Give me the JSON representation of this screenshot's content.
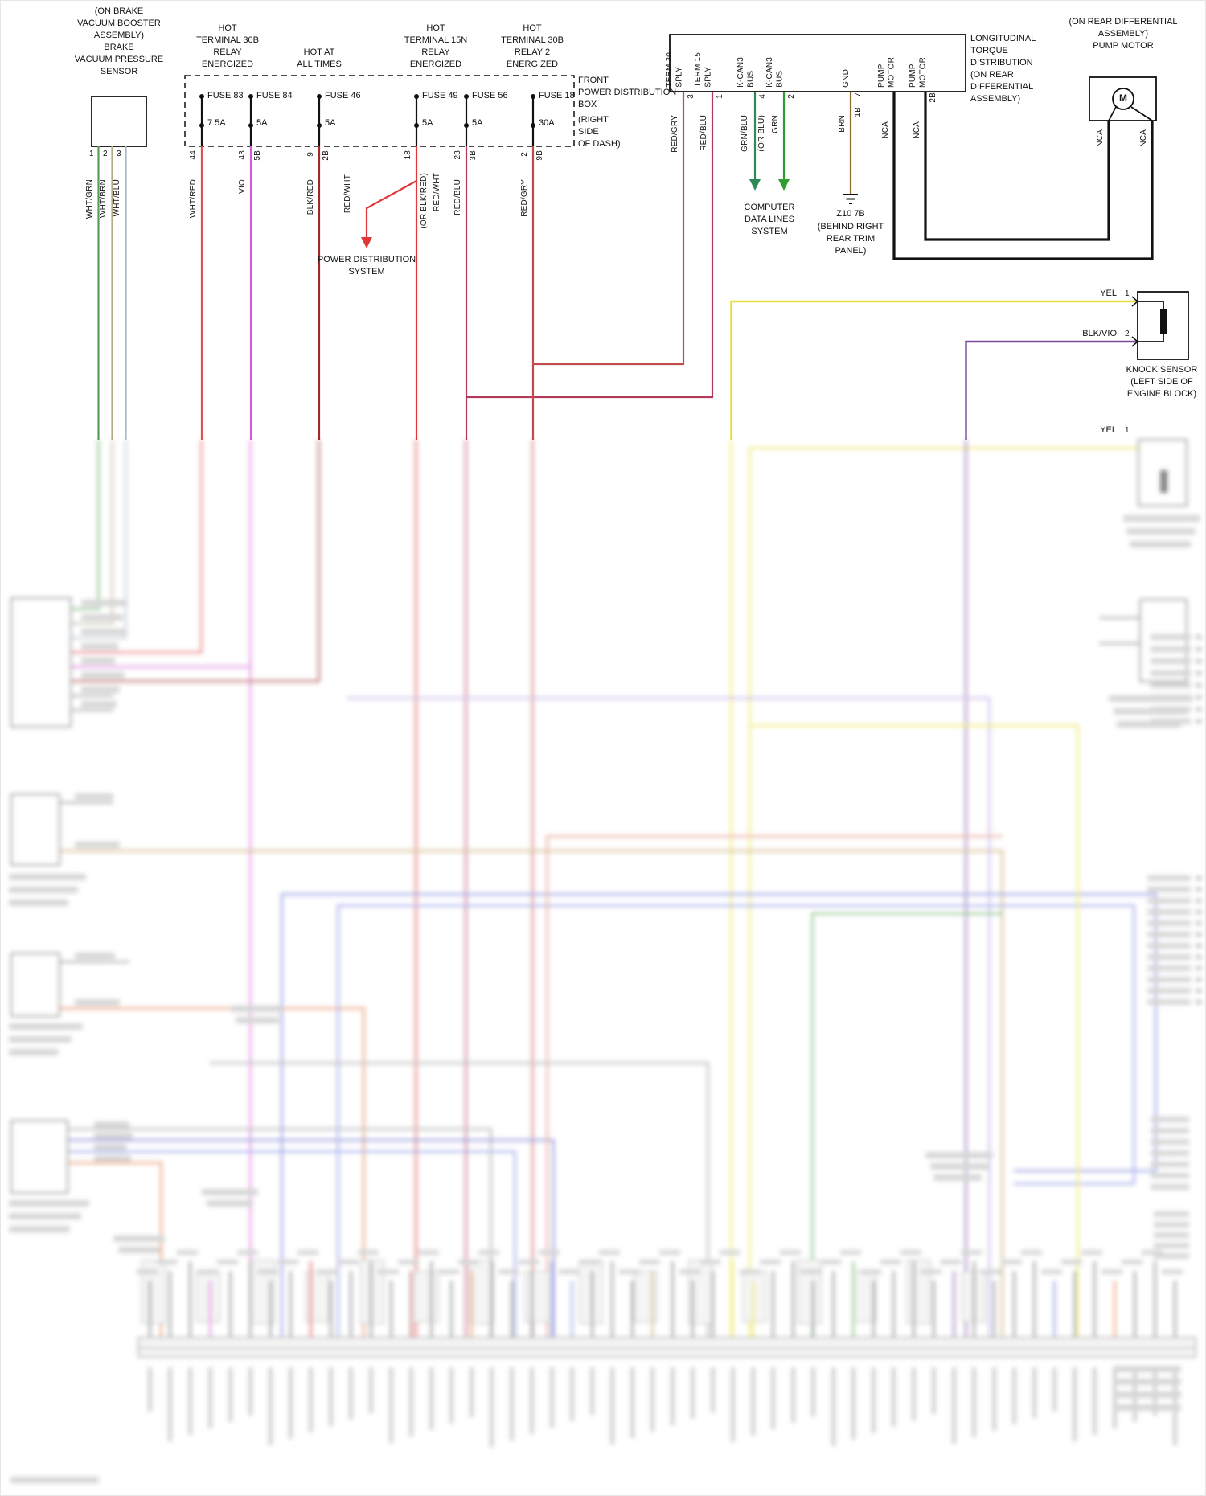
{
  "colors": {
    "wht_grn": "#55a055",
    "wht_brn": "#b5a98c",
    "wht_blu": "#a8b6c8",
    "wht_red": "#e05050",
    "vio": "#d45cd4",
    "blk_red": "#a02828",
    "red_wht": "#e03838",
    "red_blu": "#b43a5a",
    "red_gry": "#c24b4b",
    "grn_blu": "#2e8b57",
    "grn": "#2f9e2f",
    "brn": "#8b6b2e",
    "yel": "#e8e03a",
    "blk_vio": "#7a4a9a",
    "nca_black": "#111111"
  },
  "brake_sensor": {
    "title_lines": [
      "(ON BRAKE",
      "VACUUM BOOSTER",
      "ASSEMBLY)",
      "BRAKE",
      "VACUUM PRESSURE",
      "SENSOR"
    ],
    "pins": [
      "1",
      "2",
      "3"
    ],
    "wires": [
      "WHT/GRN",
      "WHT/BRN",
      "WHT/BLU"
    ]
  },
  "fuse_box": {
    "label_lines": [
      "FRONT",
      "POWER DISTRIBUTION",
      "BOX"
    ],
    "location_lines": [
      "(RIGHT",
      "SIDE",
      "OF DASH)"
    ],
    "headers": {
      "h1": [
        "HOT",
        "TERMINAL 30B",
        "RELAY",
        "ENERGIZED"
      ],
      "h2": [
        "HOT AT",
        "ALL TIMES"
      ],
      "h3": [
        "HOT",
        "TERMINAL 15N",
        "RELAY",
        "ENERGIZED"
      ],
      "h4": [
        "HOT",
        "TERMINAL 30B",
        "RELAY 2",
        "ENERGIZED"
      ]
    },
    "fuses": [
      {
        "name": "FUSE 83",
        "amps": "7.5A"
      },
      {
        "name": "FUSE 84",
        "amps": "5A"
      },
      {
        "name": "FUSE 46",
        "amps": "5A"
      },
      {
        "name": "FUSE 49",
        "amps": "5A"
      },
      {
        "name": "FUSE 56",
        "amps": "5A"
      },
      {
        "name": "FUSE 18",
        "amps": "30A"
      }
    ],
    "outputs": [
      {
        "pin": "44",
        "wire": "WHT/RED"
      },
      {
        "pin": "43",
        "pin2": "5B",
        "wire": "VIO"
      },
      {
        "pin": "9",
        "pin2": "2B",
        "wire": "BLK/RED"
      },
      {
        "pin": "18",
        "wire": "RED/WHT",
        "alt": "(OR BLK/RED)"
      },
      {
        "pin": "23",
        "pin2": "3B",
        "wire": "RED/BLU"
      },
      {
        "pin": "2",
        "pin2": "9B",
        "wire": "RED/GRY"
      }
    ]
  },
  "power_dist": {
    "wire": "RED/WHT",
    "lines": [
      "POWER DISTRIBUTION",
      "SYSTEM"
    ]
  },
  "ltd": {
    "title_lines": [
      "LONGITUDINAL",
      "TORQUE",
      "DISTRIBUTION",
      "(ON REAR",
      "DIFFERENTIAL",
      "ASSEMBLY)"
    ],
    "pin_names": [
      "TERM 30\nSPLY",
      "TERM 15\nSPLY",
      "K-CAN3\nBUS",
      "K-CAN3\nBUS",
      "GND",
      "PUMP\nMOTOR",
      "PUMP\nMOTOR"
    ],
    "pin_numbers": [
      "3",
      "1",
      "4",
      "2",
      "7",
      "2B"
    ],
    "gnd_connector": "1B",
    "wires": [
      "RED/GRY",
      "RED/BLU",
      "GRN/BLU",
      "GRN",
      "BRN"
    ],
    "wire_alt": "(OR BLU)",
    "nca": "NCA"
  },
  "computer_data": {
    "lines": [
      "COMPUTER",
      "DATA LINES",
      "SYSTEM"
    ]
  },
  "ground": {
    "id": "Z10 7B",
    "lines": [
      "(BEHIND RIGHT",
      "REAR TRIM",
      "PANEL)"
    ]
  },
  "pump": {
    "title_lines": [
      "(ON REAR DIFFERENTIAL",
      "ASSEMBLY)",
      "PUMP MOTOR"
    ],
    "symbol": "M"
  },
  "knock1": {
    "wire1": "YEL",
    "pin1": "1",
    "wire2": "BLK/VIO",
    "pin2": "2",
    "label_lines": [
      "KNOCK SENSOR",
      "(LEFT SIDE OF",
      "ENGINE BLOCK)"
    ]
  },
  "knock2": {
    "wire1": "YEL",
    "pin1": "1"
  }
}
